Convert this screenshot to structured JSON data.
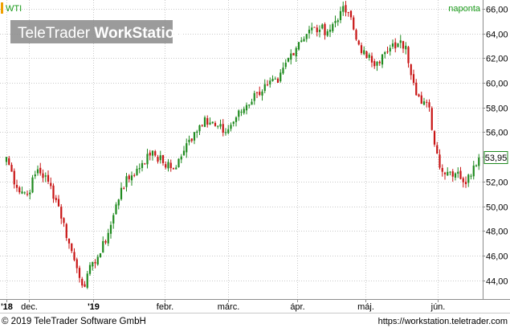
{
  "header": {
    "symbol": "WTI",
    "period": "naponta",
    "watermark_light": "TeleTrader ",
    "watermark_bold": "WorkStation"
  },
  "footer": {
    "copyright": "© 2019 TeleTrader Software GmbH",
    "url": "https://workstation.teletrader.com"
  },
  "colors": {
    "up": "#1f8a1f",
    "down": "#c81414",
    "grid": "#c9c9c9",
    "frame": "#8c8c8c",
    "symbol_marker": "#f0a000",
    "period_text": "#1a9a1a",
    "last_price_box": "#1f8a1f"
  },
  "chart_data": {
    "type": "candlestick",
    "title": "WTI",
    "subtitle": "naponta",
    "xlabel": "",
    "ylabel": "",
    "ylim": [
      42.5,
      66.7
    ],
    "grid": true,
    "y_ticks": [
      "44,00",
      "46,00",
      "48,00",
      "50,00",
      "52,00",
      "54,00",
      "56,00",
      "58,00",
      "60,00",
      "62,00",
      "64,00",
      "66,00"
    ],
    "x_ticks": [
      "'18",
      "dec.",
      "'19",
      "febr.",
      "márc.",
      "ápr.",
      "máj.",
      "jún."
    ],
    "last_price_label": "53,95",
    "last_price": 53.95,
    "anchors": [
      [
        0,
        54.0
      ],
      [
        4,
        51.5
      ],
      [
        8,
        51.0
      ],
      [
        12,
        53.0
      ],
      [
        16,
        52.0
      ],
      [
        20,
        50.0
      ],
      [
        24,
        47.0
      ],
      [
        27,
        45.0
      ],
      [
        30,
        43.5
      ],
      [
        33,
        45.5
      ],
      [
        36,
        46.2
      ],
      [
        40,
        48.5
      ],
      [
        44,
        51.5
      ],
      [
        48,
        52.5
      ],
      [
        52,
        53.5
      ],
      [
        56,
        54.5
      ],
      [
        60,
        53.5
      ],
      [
        64,
        53.0
      ],
      [
        68,
        54.5
      ],
      [
        72,
        56.0
      ],
      [
        76,
        57.2
      ],
      [
        80,
        56.5
      ],
      [
        84,
        56.0
      ],
      [
        88,
        57.2
      ],
      [
        92,
        58.2
      ],
      [
        96,
        59.2
      ],
      [
        100,
        59.8
      ],
      [
        104,
        60.0
      ],
      [
        108,
        62.0
      ],
      [
        112,
        63.3
      ],
      [
        116,
        64.3
      ],
      [
        120,
        64.3
      ],
      [
        124,
        64.3
      ],
      [
        128,
        65.8
      ],
      [
        131,
        65.7
      ],
      [
        134,
        63.5
      ],
      [
        138,
        62.0
      ],
      [
        142,
        61.7
      ],
      [
        146,
        62.5
      ],
      [
        150,
        63.2
      ],
      [
        153,
        63.0
      ],
      [
        156,
        60.0
      ],
      [
        159,
        58.3
      ],
      [
        162,
        58.0
      ],
      [
        164,
        55.0
      ],
      [
        167,
        52.8
      ],
      [
        170,
        52.8
      ],
      [
        173,
        52.8
      ],
      [
        176,
        51.8
      ],
      [
        179,
        53.3
      ],
      [
        181,
        53.95
      ]
    ]
  }
}
